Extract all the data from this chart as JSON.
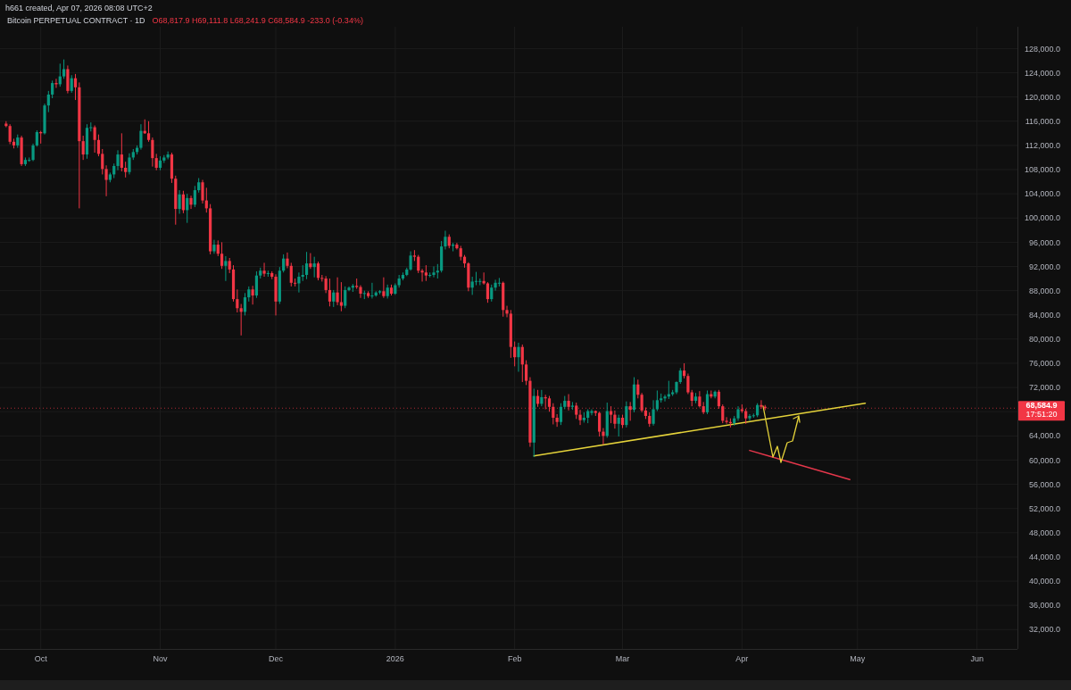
{
  "chart_data": {
    "type": "candlestick",
    "title": "Bitcoin PERPETUAL CONTRACT · 1D",
    "subtitle": "O68,817.9 H69,111.8 L68,241.9 C68,584.9 -233.0 (-0.34%)",
    "annotations": [
      "h661 created, Apr 07, 2026 08:08 UTC+2",
      "17:51:20"
    ],
    "x": [
      "2025-09-22",
      "2025-09-23",
      "2025-09-24",
      "2025-09-25",
      "2025-09-26",
      "2025-09-27",
      "2025-09-28",
      "2025-09-29",
      "2025-09-30",
      "2025-10-01",
      "2025-10-02",
      "2025-10-03",
      "2025-10-04",
      "2025-10-05",
      "2025-10-06",
      "2025-10-07",
      "2025-10-08",
      "2025-10-09",
      "2025-10-10",
      "2025-10-11",
      "2025-10-12",
      "2025-10-13",
      "2025-10-14",
      "2025-10-15",
      "2025-10-16",
      "2025-10-17",
      "2025-10-18",
      "2025-10-19",
      "2025-10-20",
      "2025-10-21",
      "2025-10-22",
      "2025-10-23",
      "2025-10-24",
      "2025-10-25",
      "2025-10-26",
      "2025-10-27",
      "2025-10-28",
      "2025-10-29",
      "2025-10-30",
      "2025-10-31",
      "2025-11-01",
      "2025-11-02",
      "2025-11-03",
      "2025-11-04",
      "2025-11-05",
      "2025-11-06",
      "2025-11-07",
      "2025-11-08",
      "2025-11-09",
      "2025-11-10",
      "2025-11-11",
      "2025-11-12",
      "2025-11-13",
      "2025-11-14",
      "2025-11-15",
      "2025-11-16",
      "2025-11-17",
      "2025-11-18",
      "2025-11-19",
      "2025-11-20",
      "2025-11-21",
      "2025-11-22",
      "2025-11-23",
      "2025-11-24",
      "2025-11-25",
      "2025-11-26",
      "2025-11-27",
      "2025-11-28",
      "2025-11-29",
      "2025-11-30",
      "2025-12-01",
      "2025-12-02",
      "2025-12-03",
      "2025-12-04",
      "2025-12-05",
      "2025-12-06",
      "2025-12-07",
      "2025-12-08",
      "2025-12-09",
      "2025-12-10",
      "2025-12-11",
      "2025-12-12",
      "2025-12-13",
      "2025-12-14",
      "2025-12-15",
      "2025-12-16",
      "2025-12-17",
      "2025-12-18",
      "2025-12-19",
      "2025-12-20",
      "2025-12-21",
      "2025-12-22",
      "2025-12-23",
      "2025-12-24",
      "2025-12-25",
      "2025-12-26",
      "2025-12-27",
      "2025-12-28",
      "2025-12-29",
      "2025-12-30",
      "2025-12-31",
      "2026-01-01",
      "2026-01-02",
      "2026-01-03",
      "2026-01-04",
      "2026-01-05",
      "2026-01-06",
      "2026-01-07",
      "2026-01-08",
      "2026-01-09",
      "2026-01-10",
      "2026-01-11",
      "2026-01-12",
      "2026-01-13",
      "2026-01-14",
      "2026-01-15",
      "2026-01-16",
      "2026-01-17",
      "2026-01-18",
      "2026-01-19",
      "2026-01-20",
      "2026-01-21",
      "2026-01-22",
      "2026-01-23",
      "2026-01-24",
      "2026-01-25",
      "2026-01-26",
      "2026-01-27",
      "2026-01-28",
      "2026-01-29",
      "2026-01-30",
      "2026-01-31",
      "2026-02-01",
      "2026-02-02",
      "2026-02-03",
      "2026-02-04",
      "2026-02-05",
      "2026-02-06",
      "2026-02-07",
      "2026-02-08",
      "2026-02-09",
      "2026-02-10",
      "2026-02-11",
      "2026-02-12",
      "2026-02-13",
      "2026-02-14",
      "2026-02-15",
      "2026-02-16",
      "2026-02-17",
      "2026-02-18",
      "2026-02-19",
      "2026-02-20",
      "2026-02-21",
      "2026-02-22",
      "2026-02-23",
      "2026-02-24",
      "2026-02-25",
      "2026-02-26",
      "2026-02-27",
      "2026-02-28",
      "2026-03-01",
      "2026-03-02",
      "2026-03-03",
      "2026-03-04",
      "2026-03-05",
      "2026-03-06",
      "2026-03-07",
      "2026-03-08",
      "2026-03-09",
      "2026-03-10",
      "2026-03-11",
      "2026-03-12",
      "2026-03-13",
      "2026-03-14",
      "2026-03-15",
      "2026-03-16",
      "2026-03-17",
      "2026-03-18",
      "2026-03-19",
      "2026-03-20",
      "2026-03-21",
      "2026-03-22",
      "2026-03-23",
      "2026-03-24",
      "2026-03-25",
      "2026-03-26",
      "2026-03-27",
      "2026-03-28",
      "2026-03-29",
      "2026-03-30",
      "2026-03-31",
      "2026-04-01",
      "2026-04-02",
      "2026-04-03",
      "2026-04-04",
      "2026-04-05",
      "2026-04-06",
      "2026-04-07"
    ],
    "ohlc": [
      [
        115600,
        116000,
        115000,
        115200
      ],
      [
        115200,
        115500,
        112200,
        112600
      ],
      [
        112600,
        113100,
        111500,
        112000
      ],
      [
        112000,
        113800,
        111600,
        113300
      ],
      [
        113300,
        113600,
        108600,
        108900
      ],
      [
        108900,
        110000,
        108600,
        109600
      ],
      [
        109600,
        110000,
        109300,
        109600
      ],
      [
        109600,
        112300,
        109400,
        112000
      ],
      [
        112000,
        114500,
        111800,
        114200
      ],
      [
        114200,
        114400,
        112300,
        114000
      ],
      [
        114000,
        118900,
        113800,
        118600
      ],
      [
        118600,
        121000,
        117500,
        120400
      ],
      [
        120400,
        122700,
        119800,
        122300
      ],
      [
        122300,
        123000,
        121500,
        122100
      ],
      [
        122100,
        125500,
        121700,
        123400
      ],
      [
        123400,
        126200,
        123000,
        124600
      ],
      [
        124600,
        125200,
        120600,
        121000
      ],
      [
        121000,
        123600,
        120700,
        123100
      ],
      [
        123100,
        123800,
        119500,
        121600
      ],
      [
        121600,
        122400,
        101600,
        112700
      ],
      [
        112700,
        113600,
        109600,
        110500
      ],
      [
        110500,
        115500,
        109800,
        114900
      ],
      [
        114900,
        115800,
        114300,
        115000
      ],
      [
        115000,
        115300,
        110800,
        112900
      ],
      [
        112900,
        113800,
        110200,
        110600
      ],
      [
        110600,
        111400,
        107200,
        108100
      ],
      [
        108100,
        108700,
        103600,
        106300
      ],
      [
        106300,
        107500,
        105900,
        107200
      ],
      [
        107200,
        109000,
        106600,
        108600
      ],
      [
        108600,
        111200,
        107900,
        110500
      ],
      [
        110500,
        114000,
        107700,
        108300
      ],
      [
        108300,
        109300,
        106700,
        107600
      ],
      [
        107600,
        110700,
        107200,
        110000
      ],
      [
        110000,
        111400,
        109600,
        110900
      ],
      [
        110900,
        112000,
        110500,
        111600
      ],
      [
        111600,
        115500,
        111300,
        114400
      ],
      [
        114400,
        116300,
        113900,
        114000
      ],
      [
        114000,
        116000,
        112600,
        112900
      ],
      [
        112900,
        113300,
        108500,
        109900
      ],
      [
        109900,
        110600,
        107900,
        108300
      ],
      [
        108300,
        110200,
        107900,
        109500
      ],
      [
        109500,
        110400,
        109100,
        110000
      ],
      [
        110000,
        111000,
        109700,
        110500
      ],
      [
        110500,
        110800,
        105800,
        106500
      ],
      [
        106500,
        107000,
        98900,
        101500
      ],
      [
        101500,
        104600,
        100700,
        103900
      ],
      [
        103900,
        104500,
        100800,
        101300
      ],
      [
        101300,
        104000,
        99200,
        103300
      ],
      [
        103300,
        103700,
        101500,
        102200
      ],
      [
        102200,
        105300,
        101800,
        104600
      ],
      [
        104600,
        106600,
        104200,
        105900
      ],
      [
        105900,
        106300,
        102400,
        102900
      ],
      [
        102900,
        105000,
        100900,
        101600
      ],
      [
        101600,
        102300,
        94000,
        94500
      ],
      [
        94500,
        96400,
        94100,
        95600
      ],
      [
        95600,
        96300,
        93700,
        94100
      ],
      [
        94100,
        96000,
        91600,
        92100
      ],
      [
        92100,
        93700,
        89600,
        92900
      ],
      [
        92900,
        93400,
        90900,
        91500
      ],
      [
        91500,
        92200,
        86200,
        86600
      ],
      [
        86600,
        88200,
        84400,
        85100
      ],
      [
        85100,
        85800,
        80600,
        84500
      ],
      [
        84500,
        87600,
        83900,
        86900
      ],
      [
        86900,
        88700,
        86200,
        88200
      ],
      [
        88200,
        88800,
        85700,
        87200
      ],
      [
        87200,
        91200,
        86800,
        90500
      ],
      [
        90500,
        91800,
        90000,
        91300
      ],
      [
        91300,
        92600,
        90300,
        90800
      ],
      [
        90800,
        91300,
        90300,
        90900
      ],
      [
        90900,
        91200,
        89900,
        90300
      ],
      [
        90300,
        90700,
        83900,
        86200
      ],
      [
        86200,
        91900,
        85800,
        91300
      ],
      [
        91300,
        94000,
        91000,
        93300
      ],
      [
        93300,
        94300,
        91700,
        92100
      ],
      [
        92100,
        92600,
        88700,
        89300
      ],
      [
        89300,
        90000,
        88700,
        89200
      ],
      [
        89200,
        91000,
        87700,
        90300
      ],
      [
        90300,
        92200,
        89600,
        90600
      ],
      [
        90600,
        94400,
        89900,
        92500
      ],
      [
        92500,
        94200,
        91600,
        91900
      ],
      [
        91900,
        93600,
        90200,
        92500
      ],
      [
        92500,
        92800,
        89700,
        90100
      ],
      [
        90100,
        90600,
        89500,
        90000
      ],
      [
        90000,
        90400,
        87600,
        88100
      ],
      [
        88100,
        90000,
        85400,
        86200
      ],
      [
        86200,
        88100,
        85300,
        87700
      ],
      [
        87700,
        90200,
        85600,
        86100
      ],
      [
        86100,
        89400,
        84600,
        85500
      ],
      [
        85500,
        88700,
        85100,
        88100
      ],
      [
        88100,
        88700,
        87900,
        88500
      ],
      [
        88500,
        89100,
        87800,
        88800
      ],
      [
        88800,
        90000,
        88300,
        88600
      ],
      [
        88600,
        88900,
        86800,
        87500
      ],
      [
        87500,
        88000,
        86600,
        87600
      ],
      [
        87600,
        87900,
        86800,
        87100
      ],
      [
        87100,
        89300,
        86700,
        87200
      ],
      [
        87200,
        87900,
        87000,
        87700
      ],
      [
        87700,
        88100,
        87400,
        87900
      ],
      [
        87900,
        90200,
        86800,
        87100
      ],
      [
        87100,
        89000,
        86700,
        88500
      ],
      [
        88500,
        89000,
        87200,
        87500
      ],
      [
        87500,
        89200,
        87300,
        88900
      ],
      [
        88900,
        90600,
        88500,
        90000
      ],
      [
        90000,
        91000,
        89700,
        90600
      ],
      [
        90600,
        91800,
        90400,
        91500
      ],
      [
        91500,
        94500,
        91300,
        93800
      ],
      [
        93800,
        94700,
        92900,
        93600
      ],
      [
        93600,
        93900,
        90900,
        91300
      ],
      [
        91300,
        91600,
        89500,
        91000
      ],
      [
        91000,
        92200,
        89600,
        90500
      ],
      [
        90500,
        91000,
        90200,
        90600
      ],
      [
        90600,
        92000,
        90200,
        91000
      ],
      [
        91000,
        92400,
        90000,
        91300
      ],
      [
        91300,
        96200,
        91000,
        95300
      ],
      [
        95300,
        97900,
        94800,
        96900
      ],
      [
        96900,
        97300,
        95000,
        95400
      ],
      [
        95400,
        95900,
        94500,
        95600
      ],
      [
        95600,
        95900,
        94800,
        95000
      ],
      [
        95000,
        95400,
        93000,
        93600
      ],
      [
        93600,
        93900,
        91800,
        92500
      ],
      [
        92500,
        92700,
        87900,
        88500
      ],
      [
        88500,
        90300,
        87300,
        89500
      ],
      [
        89500,
        91100,
        88900,
        89600
      ],
      [
        89600,
        90000,
        88900,
        89600
      ],
      [
        89600,
        91000,
        89000,
        89200
      ],
      [
        89200,
        89400,
        86000,
        86600
      ],
      [
        86600,
        89000,
        86200,
        88500
      ],
      [
        88500,
        89800,
        88000,
        89300
      ],
      [
        89300,
        90100,
        88700,
        89300
      ],
      [
        89300,
        89500,
        83700,
        84800
      ],
      [
        84800,
        85500,
        83600,
        84200
      ],
      [
        84200,
        84800,
        76900,
        78700
      ],
      [
        78700,
        79600,
        75500,
        77000
      ],
      [
        77000,
        79400,
        74600,
        78700
      ],
      [
        78700,
        79100,
        72900,
        75800
      ],
      [
        75800,
        76500,
        72400,
        73100
      ],
      [
        73100,
        73700,
        62200,
        62900
      ],
      [
        62900,
        71800,
        60500,
        70600
      ],
      [
        70600,
        71600,
        68800,
        69300
      ],
      [
        69300,
        71600,
        68900,
        70400
      ],
      [
        70400,
        70800,
        68400,
        70200
      ],
      [
        70200,
        70600,
        68000,
        68800
      ],
      [
        68800,
        69400,
        65900,
        67000
      ],
      [
        67000,
        67600,
        65500,
        66300
      ],
      [
        66300,
        69400,
        65800,
        68800
      ],
      [
        68800,
        70600,
        68400,
        69800
      ],
      [
        69800,
        70900,
        68200,
        68800
      ],
      [
        68800,
        69600,
        68300,
        69000
      ],
      [
        69000,
        69500,
        66800,
        67500
      ],
      [
        67500,
        68300,
        65800,
        66600
      ],
      [
        66600,
        67900,
        66200,
        67000
      ],
      [
        67000,
        68400,
        66100,
        68100
      ],
      [
        67800,
        68400,
        67400,
        68100
      ],
      [
        68100,
        68200,
        67300,
        67800
      ],
      [
        67800,
        68000,
        63900,
        64700
      ],
      [
        64700,
        65300,
        62600,
        64000
      ],
      [
        64000,
        69500,
        63700,
        68100
      ],
      [
        68100,
        68900,
        66100,
        67500
      ],
      [
        67500,
        68200,
        65200,
        66000
      ],
      [
        66000,
        67500,
        63900,
        67000
      ],
      [
        67000,
        67500,
        65300,
        65800
      ],
      [
        65800,
        69700,
        65400,
        68900
      ],
      [
        68900,
        69600,
        66500,
        68300
      ],
      [
        68300,
        73700,
        67900,
        72500
      ],
      [
        72500,
        73300,
        70200,
        70800
      ],
      [
        70800,
        71100,
        67900,
        68200
      ],
      [
        68200,
        68700,
        66800,
        67300
      ],
      [
        67300,
        67900,
        65500,
        66000
      ],
      [
        66000,
        69900,
        65700,
        68400
      ],
      [
        68400,
        71500,
        68100,
        69900
      ],
      [
        69900,
        71000,
        69500,
        70200
      ],
      [
        70200,
        70800,
        69700,
        70500
      ],
      [
        70500,
        73100,
        70100,
        70900
      ],
      [
        70900,
        71600,
        70600,
        71200
      ],
      [
        71200,
        73000,
        70900,
        72900
      ],
      [
        72900,
        75200,
        72600,
        74800
      ],
      [
        74800,
        76000,
        73500,
        73900
      ],
      [
        73900,
        74300,
        70900,
        71200
      ],
      [
        71200,
        71600,
        68900,
        69800
      ],
      [
        69800,
        71100,
        69400,
        70500
      ],
      [
        70500,
        71400,
        68700,
        68900
      ],
      [
        68900,
        69600,
        67600,
        67900
      ],
      [
        67900,
        71500,
        67600,
        70900
      ],
      [
        70900,
        71500,
        70200,
        70500
      ],
      [
        70500,
        71500,
        70200,
        71300
      ],
      [
        71300,
        71600,
        68500,
        68900
      ],
      [
        68900,
        69200,
        66100,
        66500
      ],
      [
        66500,
        67100,
        66000,
        66300
      ],
      [
        66300,
        66900,
        65400,
        66100
      ],
      [
        66100,
        67300,
        65700,
        66900
      ],
      [
        66900,
        68900,
        66500,
        68400
      ],
      [
        68400,
        69200,
        67800,
        68100
      ],
      [
        68100,
        68500,
        66000,
        66900
      ],
      [
        66900,
        67600,
        66500,
        67300
      ],
      [
        67300,
        67700,
        67000,
        67400
      ],
      [
        67400,
        69400,
        67100,
        69100
      ],
      [
        69100,
        69900,
        68500,
        68817.9
      ],
      [
        68817.9,
        69111.8,
        68241.9,
        68584.9
      ]
    ],
    "series": [
      {
        "type": "line",
        "color": "#e4d23a",
        "x": [
          "2026-02-06",
          "2026-05-03"
        ],
        "values": [
          60700,
          69400
        ]
      },
      {
        "type": "line",
        "color": "#e5374b",
        "x": [
          "2026-04-03",
          "2026-04-29"
        ],
        "values": [
          61600,
          56800
        ]
      }
    ],
    "xlim": [
      "2025-09-20T10:00",
      "2026-06-11T12:00"
    ],
    "xticks": [
      {
        "value": "2025-10-01",
        "label": "Oct"
      },
      {
        "value": "2025-11-01",
        "label": "Nov"
      },
      {
        "value": "2025-12-01",
        "label": "Dec"
      },
      {
        "value": "2026-01-01",
        "label": "2026"
      },
      {
        "value": "2026-02-01",
        "label": "Feb"
      },
      {
        "value": "2026-03-01",
        "label": "Mar"
      },
      {
        "value": "2026-04-01",
        "label": "Apr"
      },
      {
        "value": "2026-05-01",
        "label": "May"
      },
      {
        "value": "2026-06-01",
        "label": "Jun"
      }
    ],
    "ylim": [
      28800,
      131600
    ],
    "yticks": [
      {
        "value": 32000,
        "label": "32,000.0"
      },
      {
        "value": 36000,
        "label": "36,000.0"
      },
      {
        "value": 40000,
        "label": "40,000.0"
      },
      {
        "value": 44000,
        "label": "44,000.0"
      },
      {
        "value": 48000,
        "label": "48,000.0"
      },
      {
        "value": 52000,
        "label": "52,000.0"
      },
      {
        "value": 56000,
        "label": "56,000.0"
      },
      {
        "value": 60000,
        "label": "60,000.0"
      },
      {
        "value": 64000,
        "label": "64,000.0"
      },
      {
        "value": 68000,
        "label": null
      },
      {
        "value": 72000,
        "label": "72,000.0"
      },
      {
        "value": 76000,
        "label": "76,000.0"
      },
      {
        "value": 80000,
        "label": "80,000.0"
      },
      {
        "value": 84000,
        "label": "84,000.0"
      },
      {
        "value": 88000,
        "label": "88,000.0"
      },
      {
        "value": 92000,
        "label": "92,000.0"
      },
      {
        "value": 96000,
        "label": "96,000.0"
      },
      {
        "value": 100000,
        "label": "100,000.0"
      },
      {
        "value": 104000,
        "label": "104,000.0"
      },
      {
        "value": 108000,
        "label": "108,000.0"
      },
      {
        "value": 112000,
        "label": "112,000.0"
      },
      {
        "value": 116000,
        "label": "116,000.0"
      },
      {
        "value": 120000,
        "label": "120,000.0"
      },
      {
        "value": 124000,
        "label": "124,000.0"
      },
      {
        "value": 128000,
        "label": "128,000.0"
      }
    ],
    "ref_lines": [
      {
        "axis": "y",
        "value": 68584.9,
        "label": "68,584.9",
        "color": "#f23645",
        "line_style": "dotted"
      }
    ],
    "grid": true
  }
}
